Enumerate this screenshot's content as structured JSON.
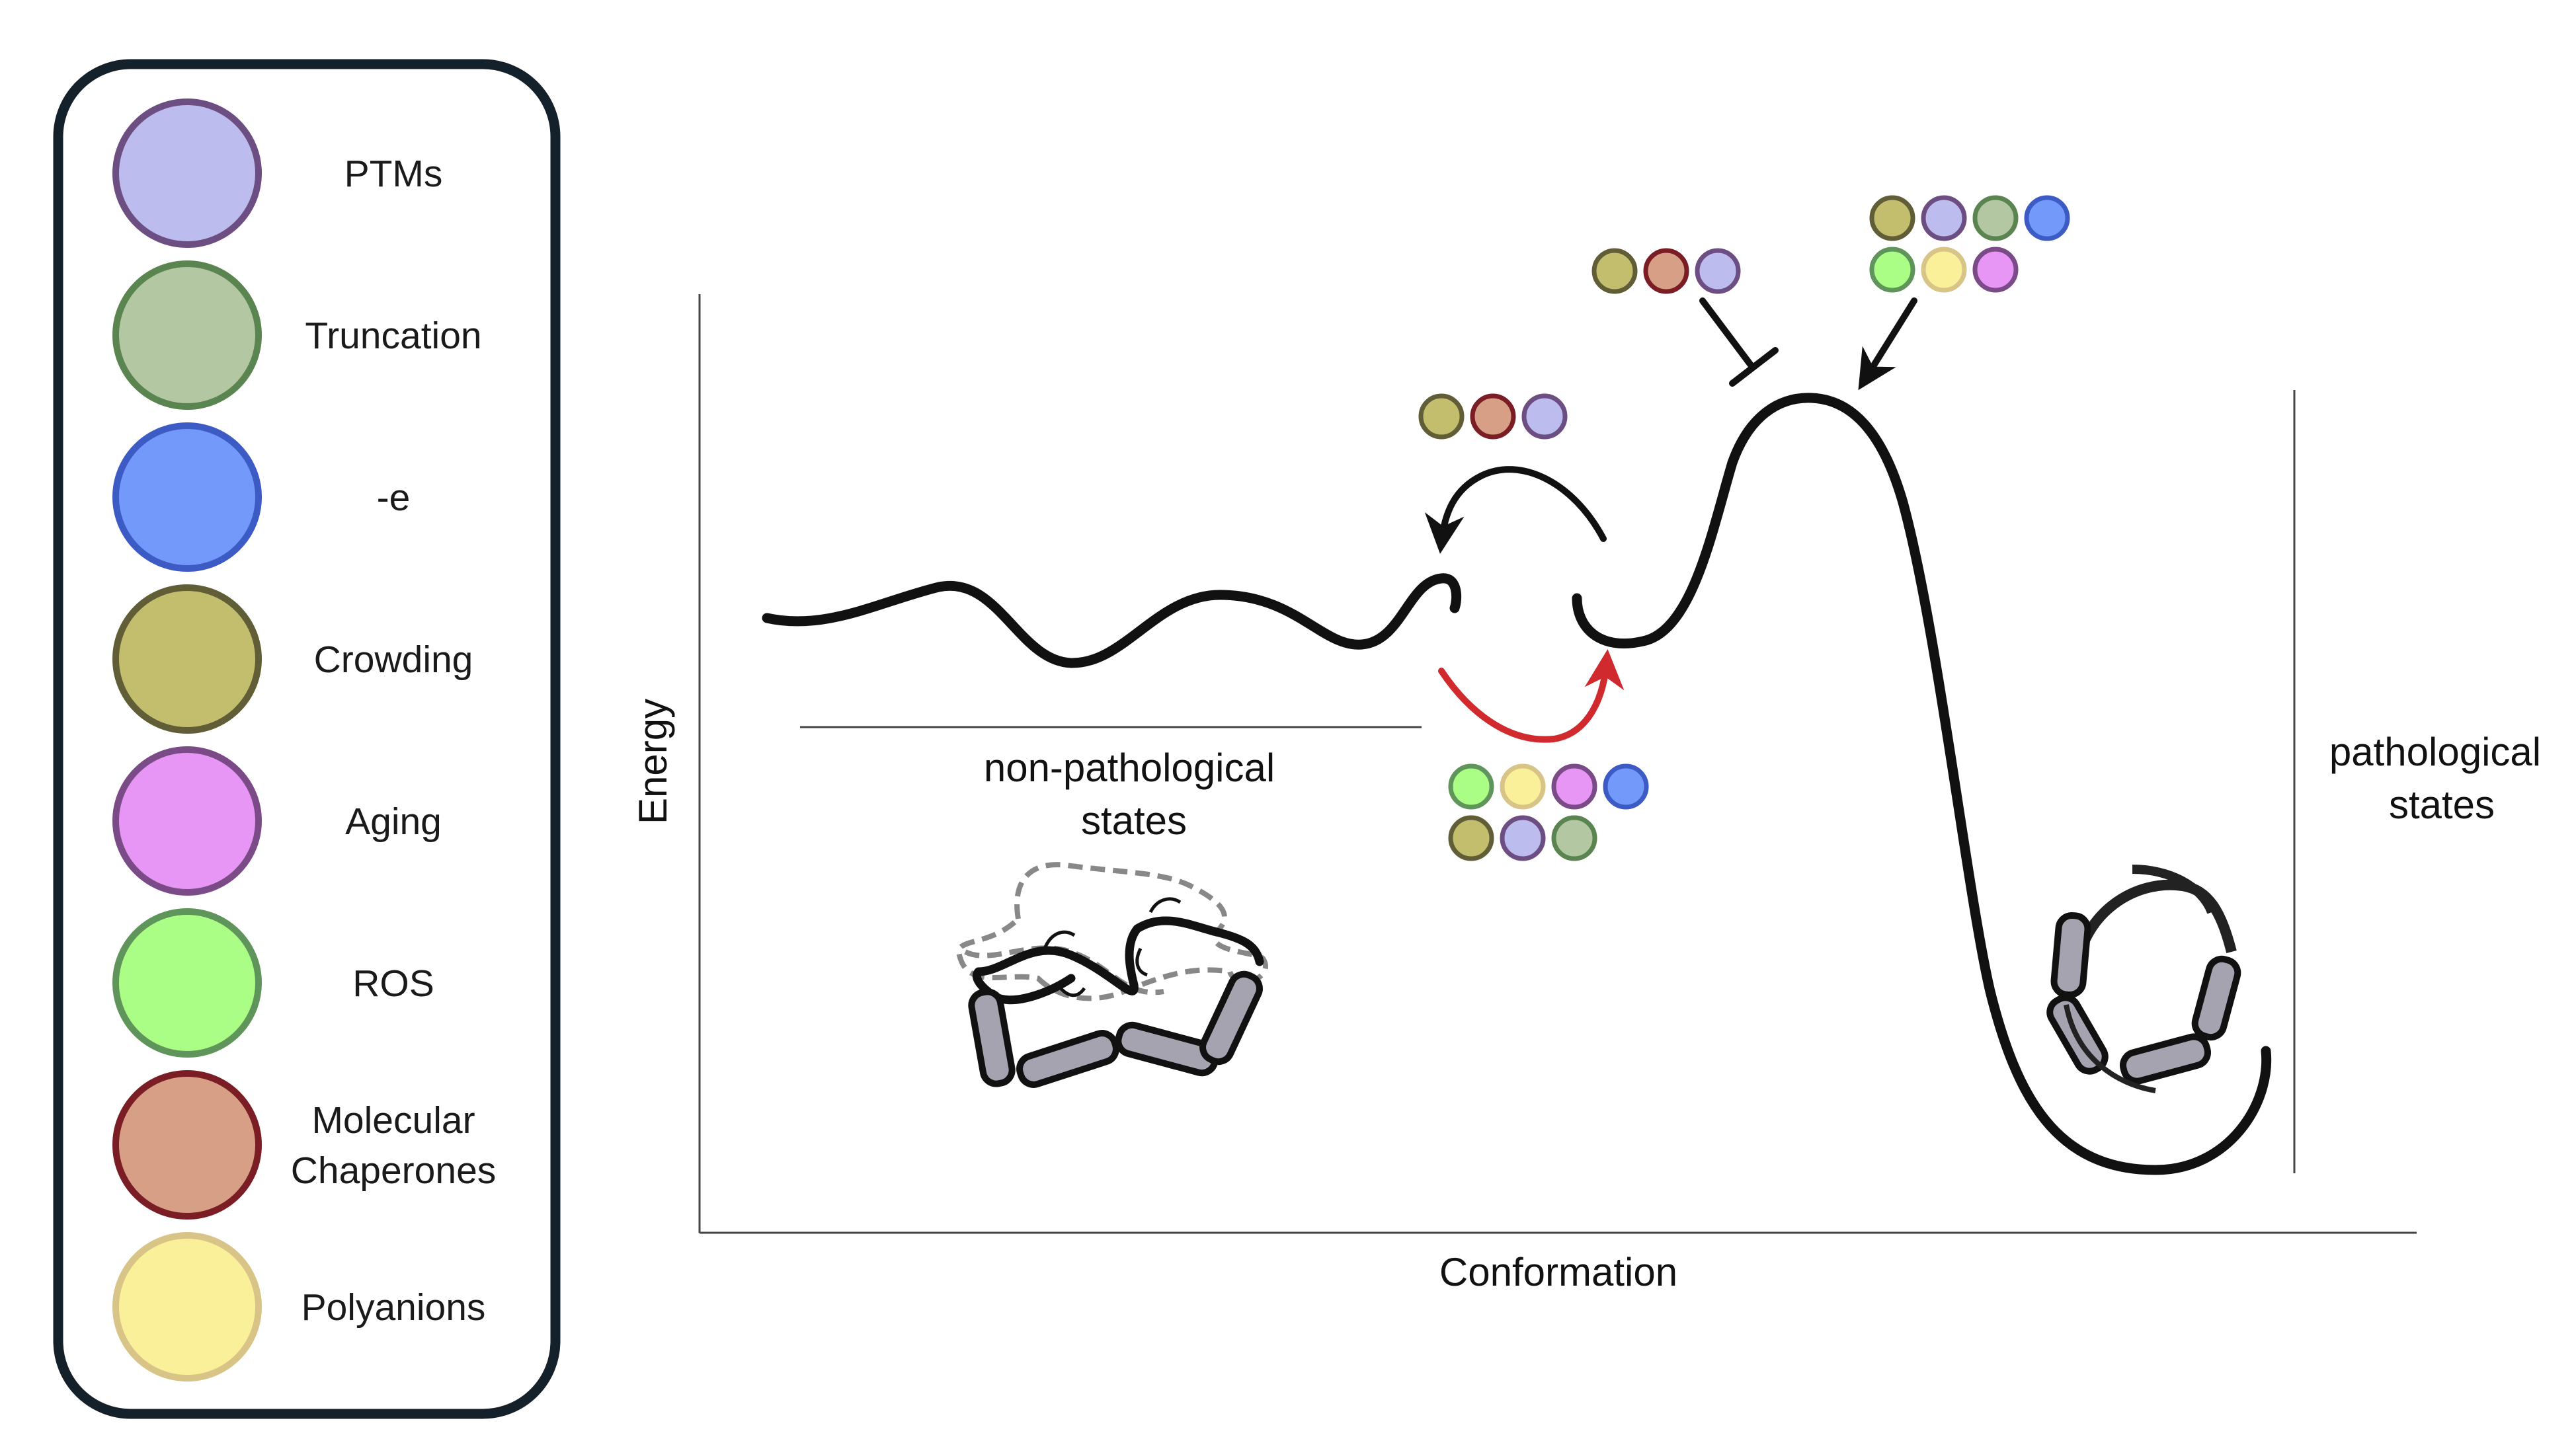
{
  "legend": {
    "items": [
      {
        "label": "PTMs",
        "fill": "#bcbcee",
        "stroke": "#6d4e82"
      },
      {
        "label": "Truncation",
        "fill": "#b3c8a2",
        "stroke": "#5a8550"
      },
      {
        "label": "-e",
        "fill": "#7399fb",
        "stroke": "#3d5bc4"
      },
      {
        "label": "Crowding",
        "fill": "#c2be6e",
        "stroke": "#615d37"
      },
      {
        "label": "Aging",
        "fill": "#e896f6",
        "stroke": "#7b4b87"
      },
      {
        "label": "ROS",
        "fill": "#aafe86",
        "stroke": "#5f955a"
      },
      {
        "label": "Molecular|Chaperones",
        "fill": "#d7a086",
        "stroke": "#7b1d24"
      },
      {
        "label": "Polyanions",
        "fill": "#fbf09a",
        "stroke": "#d9c488"
      }
    ]
  },
  "axes": {
    "ylabel": "Energy",
    "xlabel": "Conformation"
  },
  "regions": {
    "left_line1": "non-pathological",
    "left_line2": "states",
    "right_line1": "pathological",
    "right_line2": "states"
  },
  "icons": {
    "backward_arrow_group": [
      "Crowding",
      "Molecular Chaperones",
      "PTMs"
    ],
    "forward_arrow_group": [
      "ROS",
      "Polyanions",
      "Aging",
      "-e",
      "Crowding",
      "PTMs",
      "Truncation"
    ],
    "inhibit_group": [
      "Crowding",
      "Molecular Chaperones",
      "PTMs"
    ],
    "promote_group": [
      "Crowding",
      "PTMs",
      "Truncation",
      "-e",
      "ROS",
      "Polyanions",
      "Aging"
    ]
  },
  "colors": {
    "curve": "#111111",
    "forward_arrow": "#d12a2e",
    "rod_fill": "#a5a3b0",
    "legend_border": "#14202a"
  }
}
